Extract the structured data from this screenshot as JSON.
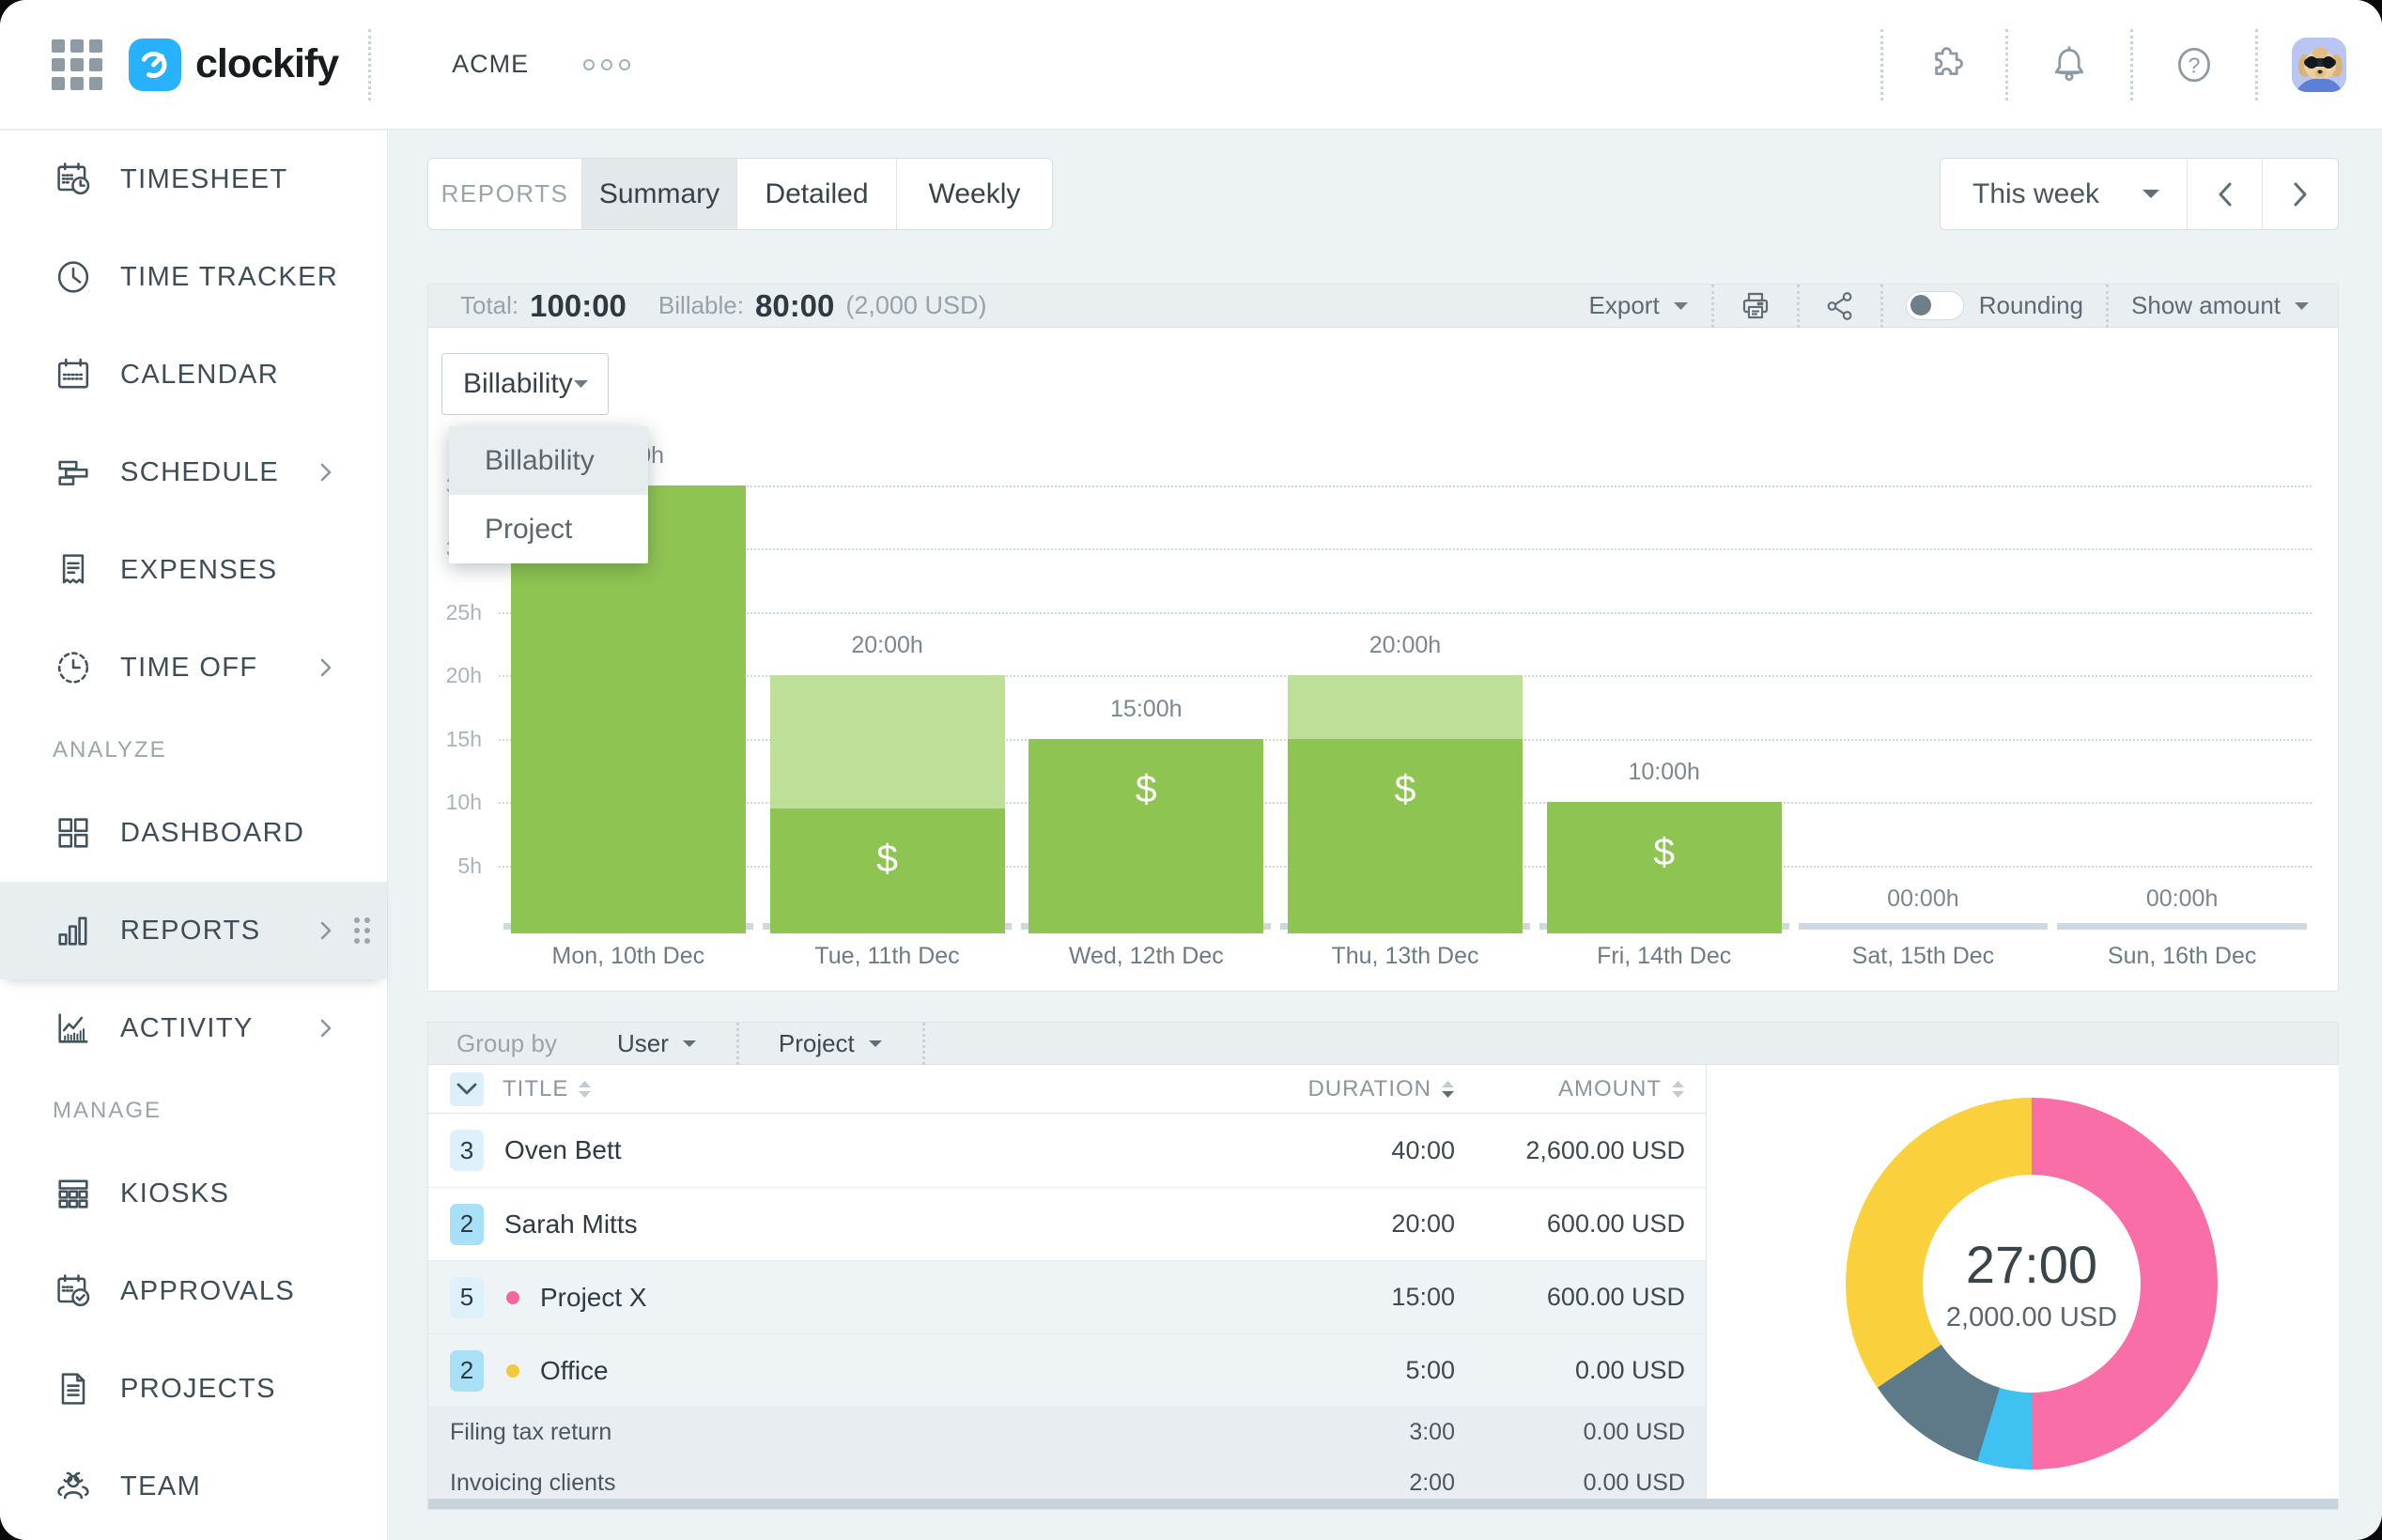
{
  "topbar": {
    "brand": "clockify",
    "workspace": "ACME",
    "icons": [
      "apps-grid-icon",
      "puzzle-icon",
      "bell-icon",
      "help-icon",
      "avatar"
    ]
  },
  "sidebar": {
    "items": [
      {
        "type": "item",
        "icon": "timesheet",
        "label": "TIMESHEET"
      },
      {
        "type": "item",
        "icon": "time-tracker",
        "label": "TIME TRACKER"
      },
      {
        "type": "item",
        "icon": "calendar",
        "label": "CALENDAR"
      },
      {
        "type": "item",
        "icon": "schedule",
        "label": "SCHEDULE",
        "chevron": true
      },
      {
        "type": "item",
        "icon": "expenses",
        "label": "EXPENSES"
      },
      {
        "type": "item",
        "icon": "time-off",
        "label": "TIME OFF",
        "chevron": true
      },
      {
        "type": "section",
        "label": "ANALYZE"
      },
      {
        "type": "item",
        "icon": "dashboard",
        "label": "DASHBOARD"
      },
      {
        "type": "item",
        "icon": "reports",
        "label": "REPORTS",
        "chevron": true,
        "drag": true,
        "selected": true
      },
      {
        "type": "item",
        "icon": "activity",
        "label": "ACTIVITY",
        "chevron": true
      },
      {
        "type": "section",
        "label": "MANAGE"
      },
      {
        "type": "item",
        "icon": "kiosks",
        "label": "KIOSKS"
      },
      {
        "type": "item",
        "icon": "approvals",
        "label": "APPROVALS"
      },
      {
        "type": "item",
        "icon": "projects",
        "label": "PROJECTS"
      },
      {
        "type": "item",
        "icon": "team",
        "label": "TEAM"
      }
    ]
  },
  "tabs": {
    "group_label": "REPORTS",
    "items": [
      {
        "label": "Summary",
        "selected": true
      },
      {
        "label": "Detailed",
        "selected": false
      },
      {
        "label": "Weekly",
        "selected": false
      }
    ]
  },
  "range": {
    "label": "This week"
  },
  "totals": {
    "total_label": "Total:",
    "total": "100:00",
    "billable_label": "Billable:",
    "billable": "80:00",
    "billable_amount": "(2,000 USD)",
    "export_label": "Export",
    "rounding_label": "Rounding",
    "rounding_on": false,
    "show_amount_label": "Show amount"
  },
  "filter": {
    "selected": "Billability",
    "options": [
      "Billability",
      "Project"
    ]
  },
  "chart_data": [
    {
      "type": "bar",
      "stacked": true,
      "title": "",
      "xlabel": "",
      "ylabel": "hours",
      "categories": [
        "Mon, 10th Dec",
        "Tue, 11th Dec",
        "Wed, 12th Dec",
        "Thu, 13th Dec",
        "Fri, 14th Dec",
        "Sat, 15th Dec",
        "Sun, 16th Dec"
      ],
      "series": [
        {
          "name": "billable",
          "color": "#8ec451",
          "values": [
            35,
            9.5,
            15,
            15,
            10,
            0,
            0
          ]
        },
        {
          "name": "non-billable",
          "color": "#bedf97",
          "values": [
            0,
            10.5,
            0,
            5,
            0,
            0,
            0
          ]
        }
      ],
      "bar_total_labels": [
        "35:00h",
        "20:00h",
        "15:00h",
        "20:00h",
        "10:00h",
        "00:00h",
        "00:00h"
      ],
      "yticks": [
        5,
        10,
        15,
        20,
        25,
        30,
        35
      ],
      "ytick_labels": [
        "5h",
        "10h",
        "15h",
        "20h",
        "25h",
        "30h",
        "35h"
      ],
      "ylim": [
        0,
        35
      ],
      "grid": "dotted-horizontal",
      "legend": "none",
      "dollar_marker_on_billable": true
    },
    {
      "type": "pie",
      "subtype": "donut",
      "center_label": "27:00",
      "center_sublabel": "2,000.00 USD",
      "legend": "none",
      "segments": [
        {
          "name": "pink",
          "color": "#f96ea6",
          "from_deg": 0,
          "to_deg": 180,
          "percent": 50.0
        },
        {
          "name": "blue",
          "color": "#3fc1f1",
          "from_deg": 180,
          "to_deg": 197,
          "percent": 4.7
        },
        {
          "name": "slate",
          "color": "#5e7988",
          "from_deg": 197,
          "to_deg": 236,
          "percent": 10.8
        },
        {
          "name": "yellow",
          "color": "#fad13d",
          "from_deg": 236,
          "to_deg": 360,
          "percent": 34.5
        }
      ]
    }
  ],
  "groupby": {
    "label": "Group by",
    "first": "User",
    "second": "Project"
  },
  "table": {
    "columns": [
      "TITLE",
      "DURATION",
      "AMOUNT"
    ],
    "rows": [
      {
        "badge": "3",
        "badge_dark": false,
        "name": "Oven Bett",
        "duration": "40:00",
        "amount": "2,600.00 USD",
        "shade": false,
        "sub": false,
        "dot": ""
      },
      {
        "badge": "2",
        "badge_dark": true,
        "name": "Sarah Mitts",
        "duration": "20:00",
        "amount": "600.00 USD",
        "shade": false,
        "sub": false,
        "dot": ""
      },
      {
        "badge": "5",
        "badge_dark": false,
        "name": "Project X",
        "duration": "15:00",
        "amount": "600.00 USD",
        "shade": true,
        "sub": false,
        "dot": "#f2679e"
      },
      {
        "badge": "2",
        "badge_dark": true,
        "name": "Office",
        "duration": "5:00",
        "amount": "0.00 USD",
        "shade": true,
        "sub": false,
        "dot": "#f0c93c"
      },
      {
        "badge": "",
        "badge_dark": false,
        "name": "Filing tax return",
        "duration": "3:00",
        "amount": "0.00 USD",
        "shade": false,
        "sub": true,
        "dot": ""
      },
      {
        "badge": "",
        "badge_dark": false,
        "name": "Invoicing clients",
        "duration": "2:00",
        "amount": "0.00 USD",
        "shade": false,
        "sub": true,
        "dot": ""
      }
    ]
  },
  "colors": {
    "accent_blue": "#28b1fc",
    "billable_green": "#8ec451",
    "non_billable_green": "#bedf97",
    "selected_bg": "#e8edf0",
    "toolbar_bg": "#e9eef1",
    "badge_light": "#ddf1fb",
    "badge_dark": "#a8e1f7"
  }
}
